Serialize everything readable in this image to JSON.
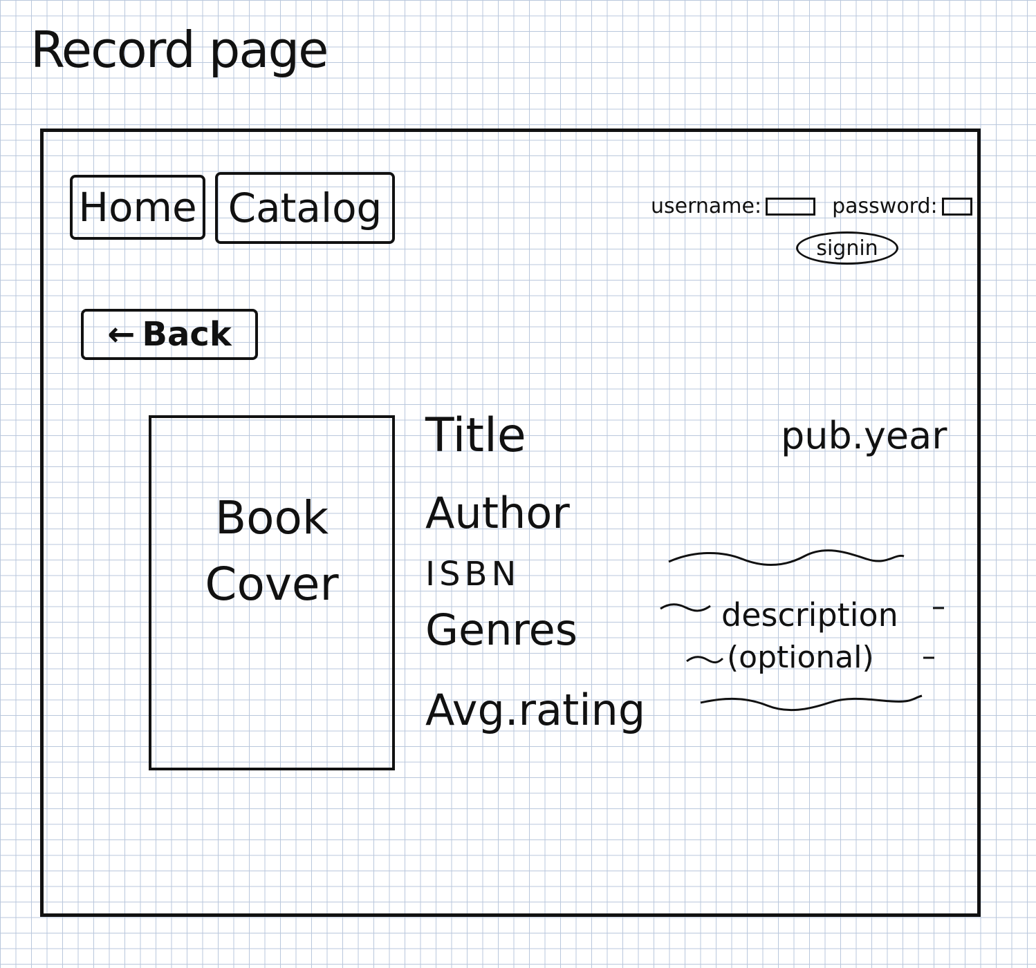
{
  "page": {
    "title": "Record page"
  },
  "nav": {
    "home_label": "Home",
    "catalog_label": "Catalog"
  },
  "auth": {
    "username_label": "username:",
    "password_label": "password:",
    "signin_label": "signin"
  },
  "back": {
    "arrow": "←",
    "label": "Back"
  },
  "cover": {
    "line1": "Book",
    "line2": "Cover"
  },
  "record": {
    "title": "Title",
    "author": "Author",
    "isbn": "ISBN",
    "genres": "Genres",
    "avg_rating": "Avg.rating",
    "pub_year": "pub.year"
  },
  "description": {
    "text": "description",
    "note": "(optional)"
  }
}
